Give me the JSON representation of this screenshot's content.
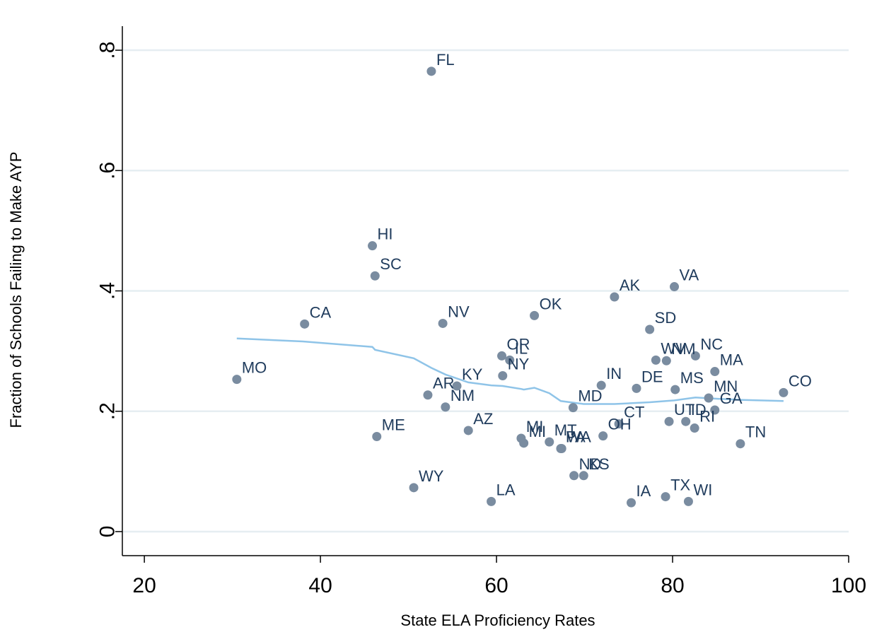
{
  "chart_data": {
    "type": "scatter",
    "xlabel": "State ELA Proficiency Rates",
    "ylabel": "Fraction of Schools Failing to Make AYP",
    "xlim": [
      17.5,
      100
    ],
    "ylim": [
      -0.04,
      0.84
    ],
    "x_ticks": [
      20,
      40,
      60,
      80,
      100
    ],
    "y_ticks": [
      0,
      0.2,
      0.4,
      0.6,
      0.8
    ],
    "x_tick_labels": [
      "20",
      "40",
      "60",
      "80",
      "100"
    ],
    "y_tick_labels": [
      "0",
      ".2",
      ".4",
      ".6",
      ".8"
    ],
    "grid": "horizontal",
    "colors": {
      "points": "#7a8ca0",
      "labels": "#1f3b5c",
      "fit_line": "#8fc4e8",
      "grid": "#e6eef2"
    },
    "points": [
      {
        "label": "FL",
        "x": 52.6,
        "y": 0.765
      },
      {
        "label": "HI",
        "x": 45.9,
        "y": 0.475
      },
      {
        "label": "SC",
        "x": 46.2,
        "y": 0.425
      },
      {
        "label": "VA",
        "x": 80.2,
        "y": 0.407
      },
      {
        "label": "AK",
        "x": 73.4,
        "y": 0.39
      },
      {
        "label": "OK",
        "x": 64.3,
        "y": 0.359
      },
      {
        "label": "NV",
        "x": 53.9,
        "y": 0.346
      },
      {
        "label": "CA",
        "x": 38.2,
        "y": 0.345
      },
      {
        "label": "SD",
        "x": 77.4,
        "y": 0.336
      },
      {
        "label": "OR",
        "x": 60.6,
        "y": 0.292
      },
      {
        "label": "NC",
        "x": 82.6,
        "y": 0.292
      },
      {
        "label": "IL",
        "x": 61.5,
        "y": 0.285
      },
      {
        "label": "WV",
        "x": 78.1,
        "y": 0.285
      },
      {
        "label": "NM",
        "x": 79.3,
        "y": 0.284
      },
      {
        "label": "MA",
        "x": 84.8,
        "y": 0.266
      },
      {
        "label": "NY",
        "x": 60.7,
        "y": 0.259
      },
      {
        "label": "MO",
        "x": 30.5,
        "y": 0.253
      },
      {
        "label": "IN",
        "x": 71.9,
        "y": 0.243
      },
      {
        "label": "KY",
        "x": 55.5,
        "y": 0.242
      },
      {
        "label": "DE",
        "x": 75.9,
        "y": 0.238
      },
      {
        "label": "MS",
        "x": 80.3,
        "y": 0.236
      },
      {
        "label": "CO",
        "x": 92.6,
        "y": 0.231
      },
      {
        "label": "AR",
        "x": 52.2,
        "y": 0.227
      },
      {
        "label": "MN",
        "x": 84.1,
        "y": 0.222
      },
      {
        "label": "NM",
        "x": 54.2,
        "y": 0.207
      },
      {
        "label": "MD",
        "x": 68.7,
        "y": 0.206
      },
      {
        "label": "GA",
        "x": 84.8,
        "y": 0.202
      },
      {
        "label": "UT",
        "x": 79.6,
        "y": 0.183
      },
      {
        "label": "ID",
        "x": 81.5,
        "y": 0.183
      },
      {
        "label": "CT",
        "x": 73.9,
        "y": 0.179
      },
      {
        "label": "RI",
        "x": 82.5,
        "y": 0.172
      },
      {
        "label": "AZ",
        "x": 56.8,
        "y": 0.168
      },
      {
        "label": "OH",
        "x": 72.1,
        "y": 0.159
      },
      {
        "label": "ME",
        "x": 46.4,
        "y": 0.158
      },
      {
        "label": "MI",
        "x": 62.8,
        "y": 0.155
      },
      {
        "label": "MT",
        "x": 66.0,
        "y": 0.149
      },
      {
        "label": "MI",
        "x": 63.1,
        "y": 0.147
      },
      {
        "label": "TN",
        "x": 87.7,
        "y": 0.146
      },
      {
        "label": "PA",
        "x": 67.3,
        "y": 0.138
      },
      {
        "label": "WA",
        "x": 67.4,
        "y": 0.138
      },
      {
        "label": "ND",
        "x": 68.8,
        "y": 0.093
      },
      {
        "label": "KS",
        "x": 69.9,
        "y": 0.093
      },
      {
        "label": "WY",
        "x": 50.6,
        "y": 0.073
      },
      {
        "label": "TX",
        "x": 79.2,
        "y": 0.058
      },
      {
        "label": "LA",
        "x": 59.4,
        "y": 0.05
      },
      {
        "label": "WI",
        "x": 81.8,
        "y": 0.05
      },
      {
        "label": "IA",
        "x": 75.3,
        "y": 0.048
      }
    ],
    "fit_line": [
      {
        "x": 30.5,
        "y": 0.321
      },
      {
        "x": 38,
        "y": 0.316
      },
      {
        "x": 45.9,
        "y": 0.307
      },
      {
        "x": 46.2,
        "y": 0.302
      },
      {
        "x": 50.6,
        "y": 0.288
      },
      {
        "x": 52.6,
        "y": 0.272
      },
      {
        "x": 54.2,
        "y": 0.261
      },
      {
        "x": 56.8,
        "y": 0.248
      },
      {
        "x": 59.4,
        "y": 0.243
      },
      {
        "x": 60.7,
        "y": 0.242
      },
      {
        "x": 62.8,
        "y": 0.237
      },
      {
        "x": 63.1,
        "y": 0.236
      },
      {
        "x": 64.3,
        "y": 0.239
      },
      {
        "x": 66.0,
        "y": 0.23
      },
      {
        "x": 67.3,
        "y": 0.217
      },
      {
        "x": 69.9,
        "y": 0.212
      },
      {
        "x": 73.4,
        "y": 0.212
      },
      {
        "x": 77.4,
        "y": 0.215
      },
      {
        "x": 80.2,
        "y": 0.218
      },
      {
        "x": 82.6,
        "y": 0.223
      },
      {
        "x": 84.8,
        "y": 0.221
      },
      {
        "x": 87.7,
        "y": 0.219
      },
      {
        "x": 92.6,
        "y": 0.217
      }
    ]
  }
}
